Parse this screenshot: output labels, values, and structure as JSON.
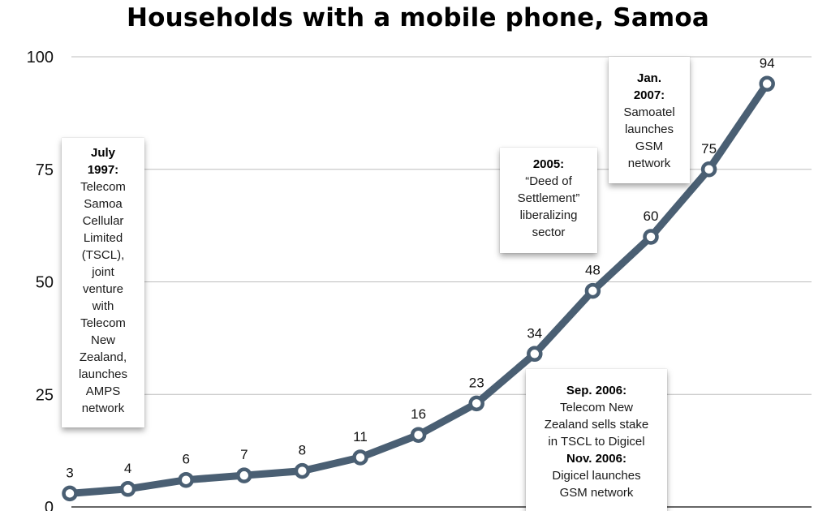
{
  "chart_data": {
    "type": "line",
    "title": "Households with a mobile phone, Samoa",
    "xlabel": "",
    "ylabel": "",
    "ylim": [
      0,
      100
    ],
    "yticks": [
      "0",
      "25",
      "50",
      "75",
      "100"
    ],
    "grid": true,
    "series_color": "#4a5f73",
    "values": [
      3,
      4,
      6,
      7,
      8,
      11,
      16,
      23,
      34,
      48,
      60,
      75,
      94
    ],
    "value_labels": [
      "3",
      "4",
      "6",
      "7",
      "8",
      "11",
      "16",
      "23",
      "34",
      "48",
      "60",
      "75",
      "94"
    ]
  },
  "annotations": {
    "july_1997": {
      "heading": [
        "July",
        "1997:"
      ],
      "body": [
        "Telecom",
        "Samoa",
        "Cellular",
        "Limited",
        "(TSCL),",
        "joint",
        "venture",
        "with",
        "Telecom",
        "New",
        "Zealand,",
        "launches",
        "AMPS",
        "network"
      ]
    },
    "y2005": {
      "heading": [
        "2005:"
      ],
      "body": [
        "“Deed of",
        "Settlement”",
        "liberalizing",
        "sector"
      ]
    },
    "jan_2007": {
      "heading": [
        "Jan.",
        "2007:"
      ],
      "body": [
        "Samoatel",
        "launches",
        "GSM",
        "network"
      ]
    },
    "sep_nov_2006": {
      "heading1": "Sep. 2006:",
      "body1": [
        "Telecom New",
        "Zealand sells stake",
        "in TSCL to Digicel"
      ],
      "heading2": "Nov. 2006:",
      "body2": [
        "Digicel launches",
        "GSM network"
      ]
    }
  }
}
